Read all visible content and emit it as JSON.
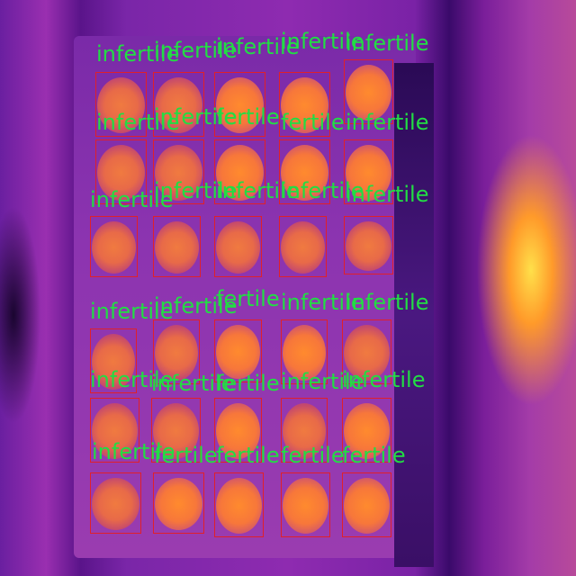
{
  "detections": [
    {
      "label": "infertile"
    },
    {
      "label": "infertile"
    },
    {
      "label": "infertile"
    },
    {
      "label": "infertile"
    },
    {
      "label": "infertile"
    },
    {
      "label": "infertile"
    },
    {
      "label": "infertile"
    },
    {
      "label": "fertile"
    },
    {
      "label": "fertile"
    },
    {
      "label": "infertile"
    },
    {
      "label": "infertile"
    },
    {
      "label": "infertile"
    },
    {
      "label": "infertile"
    },
    {
      "label": "infertile"
    },
    {
      "label": "infertile"
    },
    {
      "label": "infertile"
    },
    {
      "label": "infertile"
    },
    {
      "label": "fertile"
    },
    {
      "label": "infertile"
    },
    {
      "label": "infertile"
    },
    {
      "label": "infertile"
    },
    {
      "label": "infertile"
    },
    {
      "label": "fertile"
    },
    {
      "label": "infertile"
    },
    {
      "label": "infertile"
    },
    {
      "label": "infertile"
    },
    {
      "label": "fertile"
    },
    {
      "label": "fertile"
    },
    {
      "label": "fertile"
    },
    {
      "label": "fertile"
    }
  ],
  "colors": {
    "box": "#e0202a",
    "label": "#22dd44"
  }
}
